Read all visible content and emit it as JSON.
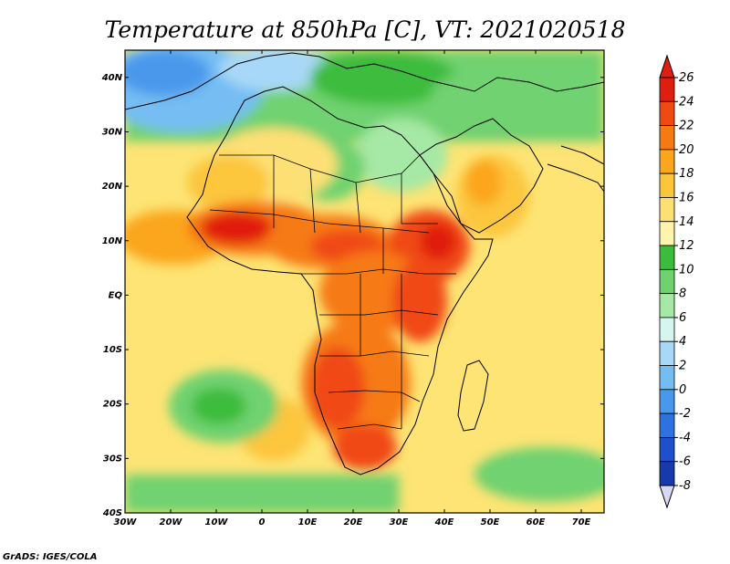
{
  "title": "Temperature at 850hPa [C], VT: 2021020518",
  "credit": "GrADS: IGES/COLA",
  "map": {
    "lon_range": [
      -30,
      75
    ],
    "lat_range": [
      -40,
      45
    ],
    "lon_ticks": [
      "30W",
      "20W",
      "10W",
      "0",
      "10E",
      "20E",
      "30E",
      "40E",
      "50E",
      "60E",
      "70E"
    ],
    "lat_ticks": [
      "40N",
      "30N",
      "20N",
      "10N",
      "EQ",
      "10S",
      "20S",
      "30S",
      "40S"
    ]
  },
  "colorbar": {
    "levels": [
      "26",
      "24",
      "22",
      "20",
      "18",
      "16",
      "14",
      "12",
      "10",
      "8",
      "6",
      "4",
      "2",
      "0",
      "-2",
      "-4",
      "-6",
      "-8"
    ],
    "colors": [
      "#e01e10",
      "#f04a14",
      "#f67a14",
      "#fba61e",
      "#fcc63c",
      "#fde074",
      "#fef5ac",
      "#3cbc3c",
      "#6fd26f",
      "#a6e8a6",
      "#d6f5ee",
      "#a8d8f7",
      "#74bdf3",
      "#4898ec",
      "#2e72e0",
      "#1e50cc",
      "#163aaa",
      "#10247a"
    ],
    "top_arrow_color": "#e01e10",
    "bottom_arrow_color": "#d8d8f4"
  },
  "chart_data": {
    "type": "heatmap",
    "title": "Temperature at 850hPa [C], VT: 2021020518",
    "variable": "Temperature at 850hPa",
    "units": "C",
    "valid_time": "2021020518",
    "x_range": [
      -30,
      75
    ],
    "y_range": [
      -40,
      45
    ],
    "x_ticks": [
      "30W",
      "20W",
      "10W",
      "0",
      "10E",
      "20E",
      "30E",
      "40E",
      "50E",
      "60E",
      "70E"
    ],
    "y_ticks": [
      "40N",
      "30N",
      "20N",
      "10N",
      "EQ",
      "10S",
      "20S",
      "30S",
      "40S"
    ],
    "colorbar_levels": [
      26,
      24,
      22,
      20,
      18,
      16,
      14,
      12,
      10,
      8,
      6,
      4,
      2,
      0,
      -2,
      -4,
      -6,
      -8
    ]
  }
}
